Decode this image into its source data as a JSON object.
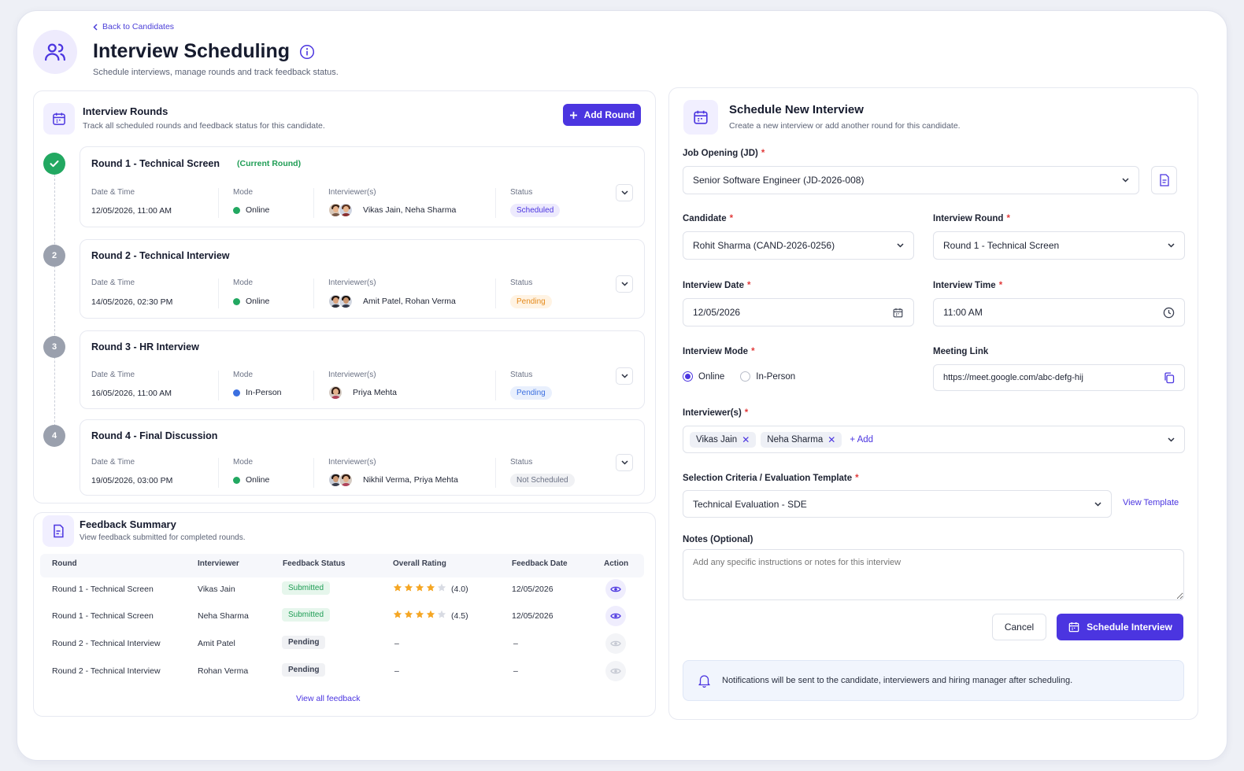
{
  "header": {
    "back_label": "Back to Candidates",
    "title": "Interview Scheduling",
    "subtitle": "Schedule interviews, manage rounds and track feedback status."
  },
  "rounds_panel": {
    "title": "Interview Rounds",
    "subtitle": "Track all scheduled rounds and feedback status for this candidate.",
    "add_round_label": "Add Round",
    "col_labels": {
      "datetime": "Date & Time",
      "mode": "Mode",
      "interviewers": "Interviewer(s)",
      "status": "Status"
    },
    "rounds": [
      {
        "marker": "check",
        "title": "Round 1 - Technical Screen",
        "tag": "(Current Round)",
        "datetime": "12/05/2026, 11:00 AM",
        "mode": "Online",
        "interviewers": "Vikas Jain, Neha Sharma",
        "status": "Scheduled"
      },
      {
        "marker": "2",
        "title": "Round 2 - Technical Interview",
        "tag": "",
        "datetime": "14/05/2026, 02:30 PM",
        "mode": "Online",
        "interviewers": "Amit Patel, Rohan Verma",
        "status": "Pending"
      },
      {
        "marker": "3",
        "title": "Round 3 - HR Interview",
        "tag": "",
        "datetime": "16/05/2026, 11:00 AM",
        "mode": "In-Person",
        "interviewers": "Priya Mehta",
        "status": "Pending"
      },
      {
        "marker": "4",
        "title": "Round 4 - Final Discussion",
        "tag": "",
        "datetime": "19/05/2026, 03:00 PM",
        "mode": "Online",
        "interviewers": "Nikhil Verma, Priya Mehta",
        "status": "Not Scheduled"
      }
    ]
  },
  "feedback": {
    "title": "Feedback Summary",
    "subtitle": "View feedback submitted for completed rounds.",
    "columns": [
      "Round",
      "Interviewer",
      "Feedback Status",
      "Overall Rating",
      "Feedback Date",
      "Action"
    ],
    "rows": [
      {
        "round": "Round 1 - Technical Screen",
        "interviewer": "Vikas Jain",
        "status": "Submitted",
        "rating": 4.0,
        "rating_label": "(4.0)",
        "date": "12/05/2026"
      },
      {
        "round": "Round 1 - Technical Screen",
        "interviewer": "Neha Sharma",
        "status": "Submitted",
        "rating": 4.5,
        "rating_label": "(4.5)",
        "date": "12/05/2026"
      },
      {
        "round": "Round 2 - Technical Interview",
        "interviewer": "Amit Patel",
        "status": "Pending",
        "rating": null,
        "rating_label": "–",
        "date": "–"
      },
      {
        "round": "Round 2 - Technical Interview",
        "interviewer": "Rohan Verma",
        "status": "Pending",
        "rating": null,
        "rating_label": "–",
        "date": "–"
      }
    ],
    "view_all": "View all feedback"
  },
  "schedule_form": {
    "title": "Schedule New Interview",
    "subtitle": "Create a new interview or add another round for this candidate.",
    "job_opening": {
      "label": "Job Opening (JD)",
      "value": "Senior Software Engineer (JD-2026-008)"
    },
    "candidate": {
      "label": "Candidate",
      "value": "Rohit Sharma (CAND-2026-0256)"
    },
    "interview_round": {
      "label": "Interview Round",
      "value": "Round 1 - Technical Screen"
    },
    "interview_date": {
      "label": "Interview Date",
      "value": "12/05/2026"
    },
    "interview_time": {
      "label": "Interview Time",
      "value": "11:00 AM"
    },
    "interview_mode": {
      "label": "Interview Mode",
      "options": [
        "Online",
        "In-Person"
      ],
      "selected": "Online"
    },
    "meeting_link": {
      "label": "Meeting Link",
      "value": "https://meet.google.com/abc-defg-hij"
    },
    "interviewers": {
      "label": "Interviewer(s)",
      "chips": [
        "Vikas Jain",
        "Neha Sharma"
      ],
      "add_label": "+ Add"
    },
    "criteria": {
      "label": "Selection Criteria / Evaluation Template",
      "value": "Technical Evaluation - SDE",
      "view_template": "View Template"
    },
    "notes": {
      "label": "Notes (Optional)",
      "placeholder": "Add any specific instructions or notes for this interview"
    },
    "cancel_label": "Cancel",
    "submit_label": "Schedule Interview",
    "notice": "Notifications will be sent to the candidate, interviewers and hiring manager after scheduling."
  },
  "colors": {
    "accent": "#4b35e0",
    "success": "#22a861",
    "online_dot": "#22a861",
    "inperson_dot": "#3b6fe0",
    "star": "#f5a623"
  }
}
